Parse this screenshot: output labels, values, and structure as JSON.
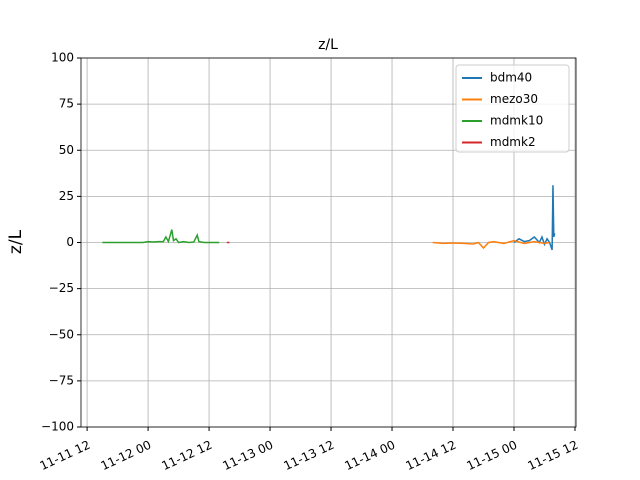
{
  "chart_data": {
    "type": "line",
    "title": "z/L",
    "y_label": "z/L",
    "xlim": [
      "11-11 10:48",
      "11-15 12:12"
    ],
    "xticks": [
      "11-11 12",
      "11-12 00",
      "11-12 12",
      "11-13 00",
      "11-13 12",
      "11-14 00",
      "11-14 12",
      "11-15 00",
      "11-15 12"
    ],
    "ylim": [
      -100,
      100
    ],
    "yticks": [
      {
        "value": -100,
        "label": "−100"
      },
      {
        "value": -75,
        "label": "−75"
      },
      {
        "value": -50,
        "label": "−50"
      },
      {
        "value": -25,
        "label": "−25"
      },
      0,
      25,
      50,
      75,
      100
    ],
    "grid": true,
    "legend": "upper right",
    "series": [
      {
        "name": "bdm40",
        "color": "#1f77b4",
        "x": [
          "11-15 00",
          "11-15 01",
          "11-15 02",
          "11-15 03",
          "11-15 04",
          "11-15 05",
          "11-15 05:30",
          "11-15 06",
          "11-15 06:30",
          "11-15 07",
          "11-15 07:30",
          "11-15 07:40",
          "11-15 07:50",
          "11-15 08"
        ],
        "values": [
          0,
          2,
          0.5,
          1,
          3,
          0,
          3,
          -1,
          2,
          0,
          -4,
          31,
          3,
          5
        ]
      },
      {
        "name": "mezo30",
        "color": "#ff7f0e",
        "x": [
          "11-14 08",
          "11-14 10",
          "11-14 12",
          "11-14 14",
          "11-14 16",
          "11-14 17",
          "11-14 18",
          "11-14 19",
          "11-14 20",
          "11-14 22",
          "11-15 00",
          "11-15 02",
          "11-15 04",
          "11-15 06",
          "11-15 07"
        ],
        "values": [
          0,
          -0.5,
          -0.3,
          -0.5,
          -0.8,
          0,
          -3,
          0,
          0.5,
          -0.5,
          1,
          -0.5,
          0.5,
          -0.5,
          0
        ]
      },
      {
        "name": "mdmk10",
        "color": "#2ca02c",
        "x": [
          "11-11 15",
          "11-11 17",
          "11-11 19",
          "11-11 21",
          "11-11 23",
          "11-12 00",
          "11-12 01",
          "11-12 02",
          "11-12 03",
          "11-12 03:30",
          "11-12 04",
          "11-12 04:40",
          "11-12 05",
          "11-12 05:30",
          "11-12 06",
          "11-12 07",
          "11-12 08",
          "11-12 09",
          "11-12 09:40",
          "11-12 10",
          "11-12 11",
          "11-12 12",
          "11-12 13",
          "11-12 14"
        ],
        "values": [
          0,
          0,
          0,
          0,
          0,
          0.5,
          0.3,
          0.5,
          0.5,
          3,
          0.5,
          7,
          1,
          2,
          0,
          0.5,
          0,
          0.3,
          4,
          0.5,
          0,
          0,
          0,
          0
        ]
      },
      {
        "name": "mdmk2",
        "color": "#d62728",
        "x": [
          "11-12 15:30",
          "11-12 16"
        ],
        "values": [
          0,
          0
        ]
      }
    ]
  }
}
